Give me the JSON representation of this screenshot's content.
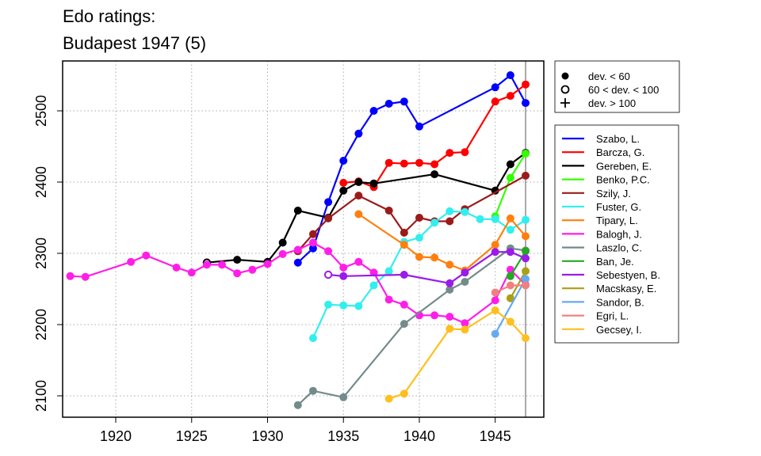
{
  "chart_data": {
    "type": "line",
    "title_lines": [
      "Edo ratings:",
      "Budapest 1947 (5)"
    ],
    "xlabel": "",
    "ylabel": "",
    "xlim": [
      1916.5,
      1948.2
    ],
    "ylim": [
      2070,
      2570
    ],
    "x_ticks": [
      1920,
      1925,
      1930,
      1935,
      1940,
      1945
    ],
    "y_ticks": [
      2100,
      2200,
      2300,
      2400,
      2500
    ],
    "grid": "dotted",
    "reference_line_x": 1947,
    "marker_legend": [
      {
        "symbol": "filled-circle",
        "label": "dev. < 60"
      },
      {
        "symbol": "open-circle",
        "label": "60 < dev. < 100"
      },
      {
        "symbol": "plus",
        "label": "dev. > 100"
      }
    ],
    "series": [
      {
        "name": "Szabo, L.",
        "color": "#0000FF",
        "points": [
          [
            1932,
            2287
          ],
          [
            1933,
            2307
          ],
          [
            1934,
            2372
          ],
          [
            1935,
            2430
          ],
          [
            1936,
            2468
          ],
          [
            1937,
            2500
          ],
          [
            1938,
            2510
          ],
          [
            1939,
            2513
          ],
          [
            1940,
            2478
          ],
          [
            1945,
            2533
          ],
          [
            1946,
            2550
          ],
          [
            1947,
            2511
          ]
        ],
        "open": []
      },
      {
        "name": "Barcza, G.",
        "color": "#FF0000",
        "points": [
          [
            1935,
            2399
          ],
          [
            1936,
            2401
          ],
          [
            1937,
            2393
          ],
          [
            1938,
            2427
          ],
          [
            1939,
            2426
          ],
          [
            1940,
            2427
          ],
          [
            1941,
            2425
          ],
          [
            1942,
            2441
          ],
          [
            1943,
            2442
          ],
          [
            1945,
            2513
          ],
          [
            1946,
            2521
          ],
          [
            1947,
            2537
          ]
        ],
        "open": []
      },
      {
        "name": "Gereben, E.",
        "color": "#000000",
        "points": [
          [
            1926,
            2287
          ],
          [
            1928,
            2291
          ],
          [
            1930,
            2288
          ],
          [
            1931,
            2315
          ],
          [
            1932,
            2360
          ],
          [
            1934,
            2350
          ],
          [
            1935,
            2388
          ],
          [
            1936,
            2400
          ],
          [
            1937,
            2398
          ],
          [
            1941,
            2411
          ],
          [
            1945,
            2388
          ],
          [
            1946,
            2425
          ],
          [
            1947,
            2441
          ]
        ],
        "open": [
          [
            1926,
            2287
          ]
        ]
      },
      {
        "name": "Benko, P.C.",
        "color": "#33FF00",
        "points": [
          [
            1945,
            2352
          ],
          [
            1946,
            2406
          ],
          [
            1947,
            2440
          ]
        ],
        "open": []
      },
      {
        "name": "Szily, J.",
        "color": "#9B1B1B",
        "points": [
          [
            1932,
            2303
          ],
          [
            1933,
            2327
          ],
          [
            1934,
            2349
          ],
          [
            1936,
            2381
          ],
          [
            1938,
            2360
          ],
          [
            1939,
            2329
          ],
          [
            1940,
            2350
          ],
          [
            1941,
            2345
          ],
          [
            1942,
            2345
          ],
          [
            1943,
            2362
          ],
          [
            1947,
            2409
          ]
        ],
        "open": []
      },
      {
        "name": "Fuster, G.",
        "color": "#33EEEE",
        "points": [
          [
            1933,
            2181
          ],
          [
            1934,
            2228
          ],
          [
            1935,
            2227
          ],
          [
            1936,
            2226
          ],
          [
            1937,
            2255
          ],
          [
            1938,
            2275
          ],
          [
            1939,
            2316
          ],
          [
            1940,
            2322
          ],
          [
            1941,
            2343
          ],
          [
            1942,
            2359
          ],
          [
            1943,
            2358
          ],
          [
            1944,
            2348
          ],
          [
            1945,
            2348
          ],
          [
            1946,
            2333
          ],
          [
            1947,
            2347
          ]
        ],
        "open": []
      },
      {
        "name": "Tipary, L.",
        "color": "#FF7F0E",
        "points": [
          [
            1936,
            2355
          ],
          [
            1939,
            2312
          ],
          [
            1940,
            2295
          ],
          [
            1941,
            2294
          ],
          [
            1942,
            2284
          ],
          [
            1943,
            2276
          ],
          [
            1945,
            2312
          ],
          [
            1946,
            2349
          ],
          [
            1947,
            2324
          ]
        ],
        "open": []
      },
      {
        "name": "Balogh, J.",
        "color": "#FF1EE8",
        "points": [
          [
            1917,
            2268
          ],
          [
            1918,
            2267
          ],
          [
            1921,
            2288
          ],
          [
            1922,
            2297
          ],
          [
            1924,
            2280
          ],
          [
            1925,
            2273
          ],
          [
            1926,
            2284
          ],
          [
            1927,
            2284
          ],
          [
            1928,
            2272
          ],
          [
            1929,
            2277
          ],
          [
            1930,
            2285
          ],
          [
            1931,
            2299
          ],
          [
            1932,
            2305
          ],
          [
            1933,
            2315
          ],
          [
            1934,
            2303
          ],
          [
            1935,
            2280
          ],
          [
            1936,
            2288
          ],
          [
            1937,
            2273
          ],
          [
            1938,
            2235
          ],
          [
            1939,
            2228
          ],
          [
            1940,
            2213
          ],
          [
            1941,
            2213
          ],
          [
            1942,
            2211
          ],
          [
            1943,
            2202
          ],
          [
            1945,
            2234
          ],
          [
            1946,
            2277
          ],
          [
            1947,
            2256
          ]
        ],
        "open": []
      },
      {
        "name": "Laszlo, C.",
        "color": "#748B8B",
        "points": [
          [
            1932,
            2087
          ],
          [
            1933,
            2107
          ],
          [
            1935,
            2098
          ],
          [
            1939,
            2201
          ],
          [
            1942,
            2249
          ],
          [
            1943,
            2260
          ],
          [
            1946,
            2307
          ],
          [
            1947,
            2304
          ]
        ],
        "open": []
      },
      {
        "name": "Ban, Je.",
        "color": "#22AA22",
        "points": [
          [
            1946,
            2268
          ],
          [
            1947,
            2303
          ]
        ],
        "open": []
      },
      {
        "name": "Sebestyen, B.",
        "color": "#9B1BE8",
        "points": [
          [
            1934,
            2270
          ],
          [
            1935,
            2268
          ],
          [
            1939,
            2270
          ],
          [
            1942,
            2258
          ],
          [
            1943,
            2273
          ],
          [
            1945,
            2302
          ],
          [
            1946,
            2302
          ],
          [
            1947,
            2293
          ]
        ],
        "open": [
          [
            1934,
            2270
          ]
        ]
      },
      {
        "name": "Macskasy, E.",
        "color": "#A9A014",
        "points": [
          [
            1946,
            2237
          ],
          [
            1947,
            2275
          ]
        ],
        "open": []
      },
      {
        "name": "Sandor, B.",
        "color": "#66AAEE",
        "points": [
          [
            1945,
            2187
          ],
          [
            1947,
            2264
          ]
        ],
        "open": []
      },
      {
        "name": "Egri, L.",
        "color": "#F08080",
        "points": [
          [
            1945,
            2245
          ],
          [
            1946,
            2255
          ],
          [
            1947,
            2255
          ]
        ],
        "open": []
      },
      {
        "name": "Gecsey, I.",
        "color": "#FFBF1E",
        "points": [
          [
            1938,
            2096
          ],
          [
            1939,
            2103
          ],
          [
            1942,
            2194
          ],
          [
            1943,
            2193
          ],
          [
            1945,
            2220
          ],
          [
            1946,
            2204
          ],
          [
            1947,
            2181
          ]
        ],
        "open": []
      }
    ]
  }
}
